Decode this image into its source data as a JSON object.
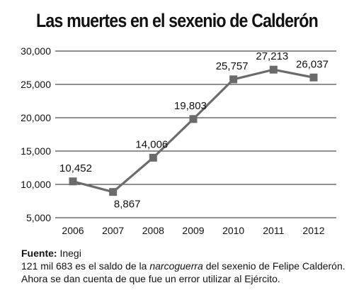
{
  "chart_data": {
    "type": "line",
    "title": "Las muertes en el sexenio de Calderón",
    "xlabel": "",
    "ylabel": "",
    "categories": [
      "2006",
      "2007",
      "2008",
      "2009",
      "2010",
      "2011",
      "2012"
    ],
    "series": [
      {
        "name": "",
        "values": [
          10452,
          8867,
          14006,
          19803,
          25757,
          27213,
          26037
        ]
      }
    ],
    "data_labels": [
      "10,452",
      "8,867",
      "14,006",
      "19,803",
      "25,757",
      "27,213",
      "26,037"
    ],
    "yticks": [
      5000,
      10000,
      15000,
      20000,
      25000,
      30000
    ],
    "ytick_labels": [
      "5,000",
      "10,000",
      "15,000",
      "20,000",
      "25,000",
      "30,000"
    ],
    "ylim": [
      5000,
      30000
    ],
    "grid": true,
    "legend": "none",
    "line_color": "#6b6b6b",
    "marker_color": "#6b6b6b",
    "grid_color": "#222222"
  },
  "footer": {
    "source_label": "Fuente:",
    "source_value": " Inegi",
    "note_prefix": "121 mil 683 es el saldo de la ",
    "note_italic": "narcoguerra",
    "note_suffix": " del sexenio de Felipe Calderón.",
    "note_line2": "Ahora se dan cuenta de que fue un error utilizar al Ejército."
  }
}
